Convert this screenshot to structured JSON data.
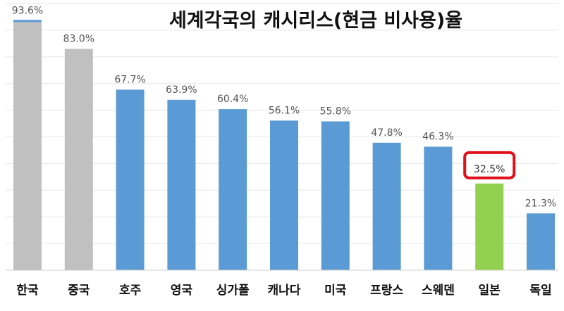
{
  "chart_data": {
    "type": "bar",
    "title": "세계각국의 캐시리스(현금 비사용)율",
    "categories": [
      "한국",
      "중국",
      "호주",
      "영국",
      "싱가폴",
      "캐나다",
      "미국",
      "프랑스",
      "스웨덴",
      "일본",
      "독일"
    ],
    "values": [
      93.6,
      83.0,
      67.7,
      63.9,
      60.4,
      56.1,
      55.8,
      47.8,
      46.3,
      32.5,
      21.3
    ],
    "data_labels": [
      "93.6%",
      "83.0%",
      "67.7%",
      "63.9%",
      "60.4%",
      "56.1%",
      "55.8%",
      "47.8%",
      "46.3%",
      "32.5%",
      "21.3%"
    ],
    "bar_colors": [
      "#c0c0c0",
      "#c0c0c0",
      "#5b9bd5",
      "#5b9bd5",
      "#5b9bd5",
      "#5b9bd5",
      "#5b9bd5",
      "#5b9bd5",
      "#5b9bd5",
      "#92d050",
      "#5b9bd5"
    ],
    "top_marker_color": "#5b9bd5",
    "highlight": {
      "category": "일본",
      "border_color": "#e0101a"
    },
    "ylim": [
      0,
      100
    ],
    "grid": true,
    "legend": "none"
  }
}
